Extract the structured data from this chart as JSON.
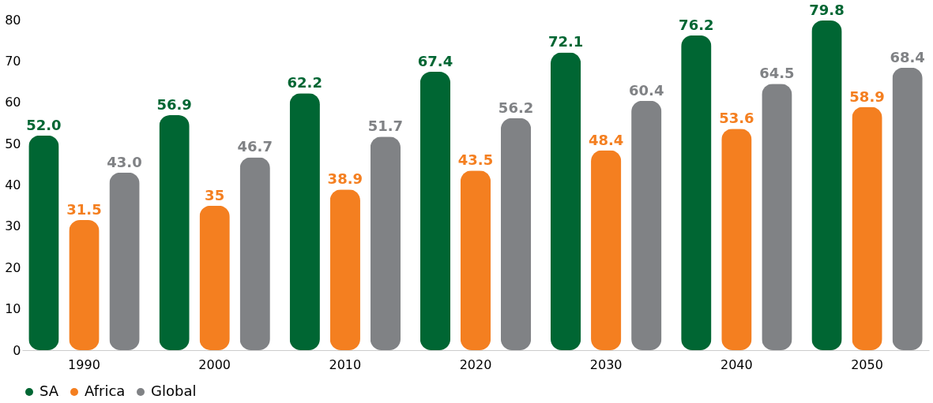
{
  "chart_data": {
    "type": "bar",
    "categories": [
      "1990",
      "2000",
      "2010",
      "2020",
      "2030",
      "2040",
      "2050"
    ],
    "series": [
      {
        "name": "SA",
        "color": "#006633",
        "values": [
          52.0,
          56.9,
          62.2,
          67.4,
          72.1,
          76.2,
          79.8
        ],
        "value_labels": [
          "52.0",
          "56.9",
          "62.2",
          "67.4",
          "72.1",
          "76.2",
          "79.8"
        ]
      },
      {
        "name": "Africa",
        "color": "#f47f20",
        "values": [
          31.5,
          35,
          38.9,
          43.5,
          48.4,
          53.6,
          58.9
        ],
        "value_labels": [
          "31.5",
          "35",
          "38.9",
          "43.5",
          "48.4",
          "53.6",
          "58.9"
        ]
      },
      {
        "name": "Global",
        "color": "#808285",
        "values": [
          43.0,
          46.7,
          51.7,
          56.2,
          60.4,
          64.5,
          68.4
        ],
        "value_labels": [
          "43.0",
          "46.7",
          "51.7",
          "56.2",
          "60.4",
          "64.5",
          "68.4"
        ]
      }
    ],
    "ylim": [
      0,
      80
    ],
    "yticks": [
      0,
      10,
      20,
      30,
      40,
      50,
      60,
      70,
      80
    ],
    "grid": false,
    "legend": "bottom"
  }
}
